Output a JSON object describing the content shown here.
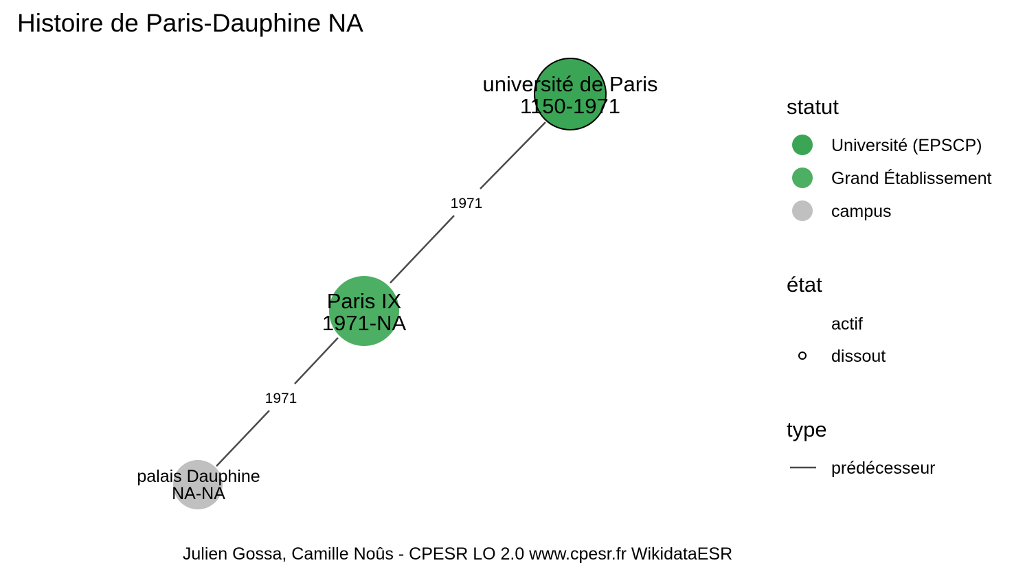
{
  "title": "Histoire de Paris-Dauphine NA",
  "colors": {
    "universite_epscp": "#3aa655",
    "grand_etablissement": "#4caf63",
    "campus": "#c0c0c0",
    "edge": "#4a4a4a",
    "node_border_dissout": "#000000"
  },
  "nodes": [
    {
      "name": "université de Paris",
      "dates": "1150-1971",
      "statut": "Université (EPSCP)",
      "etat": "dissout"
    },
    {
      "name": "Paris IX",
      "dates": "1971-NA",
      "statut": "Grand Établissement",
      "etat": "actif"
    },
    {
      "name": "palais Dauphine",
      "dates": "NA-NA",
      "statut": "campus",
      "etat": "actif"
    }
  ],
  "edges": [
    {
      "from": "université de Paris",
      "to": "Paris IX",
      "label": "1971",
      "type": "prédécesseur"
    },
    {
      "from": "Paris IX",
      "to": "palais Dauphine",
      "label": "1971",
      "type": "prédécesseur"
    }
  ],
  "legend": {
    "statut": {
      "title": "statut",
      "items": [
        "Université (EPSCP)",
        "Grand Établissement",
        "campus"
      ]
    },
    "etat": {
      "title": "état",
      "items": [
        "actif",
        "dissout"
      ]
    },
    "type": {
      "title": "type",
      "items": [
        "prédécesseur"
      ]
    }
  },
  "caption": "Julien Gossa, Camille Noûs - CPESR LO 2.0 www.cpesr.fr WikidataESR"
}
